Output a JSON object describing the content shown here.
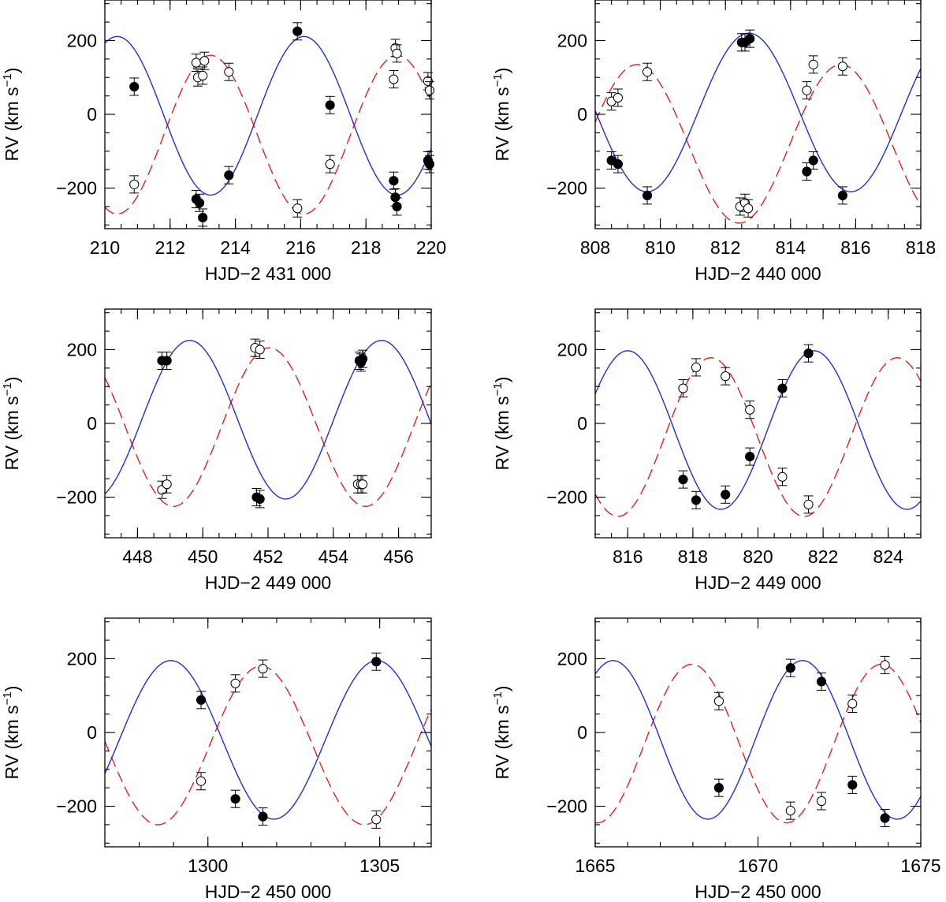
{
  "chart_data": [
    {
      "type": "scatter",
      "xlabel": "HJD−2 431 000",
      "ylabel": "RV  (km s",
      "ylabel_sup": "−1",
      "ylabel_close": ")",
      "xlim": [
        210,
        220
      ],
      "ylim": [
        -310,
        310
      ],
      "xticks": [
        210,
        212,
        214,
        216,
        218,
        220
      ],
      "yticks": [
        -200,
        0,
        200
      ],
      "curves": {
        "primary": {
          "style": "solid",
          "color": "#1f2fd0",
          "K": 215,
          "gamma": -4,
          "period": 5.72,
          "t_max": 216.1
        },
        "secondary": {
          "style": "dashed",
          "color": "#e0201c",
          "K": 215,
          "gamma": -55,
          "period": 5.72,
          "t_max": 213.24
        }
      },
      "series": [
        {
          "marker": "filled",
          "x": [
            210.9,
            212.8,
            212.9,
            213.0,
            213.8,
            215.9,
            216.9,
            218.85,
            218.9,
            218.95,
            219.9,
            219.95
          ],
          "y": [
            75,
            -230,
            -240,
            -280,
            -165,
            225,
            25,
            -180,
            -225,
            -250,
            -125,
            -135
          ]
        },
        {
          "marker": "open",
          "x": [
            210.9,
            212.8,
            212.85,
            213.0,
            213.05,
            213.8,
            215.9,
            216.9,
            218.85,
            218.9,
            218.95,
            219.9,
            219.95
          ],
          "y": [
            -190,
            140,
            100,
            105,
            145,
            115,
            -255,
            -135,
            95,
            180,
            165,
            90,
            65
          ]
        }
      ]
    },
    {
      "type": "scatter",
      "xlabel": "HJD−2 440 000",
      "ylabel": "RV  (km s",
      "ylabel_sup": "−1",
      "ylabel_close": ")",
      "xlim": [
        808,
        818
      ],
      "ylim": [
        -310,
        310
      ],
      "xticks": [
        808,
        810,
        812,
        814,
        816,
        818
      ],
      "yticks": [
        -200,
        0,
        200
      ],
      "curves": {
        "primary": {
          "style": "solid",
          "color": "#1f2fd0",
          "K": 215,
          "gamma": 5,
          "period": 6.26,
          "t_max": 812.72
        },
        "secondary": {
          "style": "dashed",
          "color": "#e0201c",
          "K": 215,
          "gamma": -80,
          "period": 6.26,
          "t_max": 815.55
        }
      },
      "series": [
        {
          "marker": "filled",
          "x": [
            808.5,
            808.7,
            809.6,
            812.5,
            812.6,
            812.75,
            814.5,
            814.7,
            815.6
          ],
          "y": [
            -125,
            -135,
            -220,
            195,
            195,
            205,
            -155,
            -125,
            -220
          ]
        },
        {
          "marker": "open",
          "x": [
            808.5,
            808.7,
            809.6,
            812.45,
            812.6,
            812.7,
            814.5,
            814.7,
            815.6
          ],
          "y": [
            35,
            45,
            115,
            -250,
            -240,
            -255,
            65,
            135,
            130
          ]
        }
      ]
    },
    {
      "type": "scatter",
      "xlabel": "HJD−2 449 000",
      "ylabel": "RV  (km s",
      "ylabel_sup": "−1",
      "ylabel_close": ")",
      "xlim": [
        447,
        457
      ],
      "ylim": [
        -310,
        310
      ],
      "xticks": [
        448,
        450,
        452,
        454,
        456
      ],
      "yticks": [
        -200,
        0,
        200
      ],
      "curves": {
        "primary": {
          "style": "solid",
          "color": "#1f2fd0",
          "K": 215,
          "gamma": 10,
          "period": 5.88,
          "t_max": 449.6
        },
        "secondary": {
          "style": "dashed",
          "color": "#e0201c",
          "K": 215,
          "gamma": -10,
          "period": 5.88,
          "t_max": 452.04
        }
      },
      "series": [
        {
          "marker": "filled",
          "x": [
            448.75,
            448.9,
            451.65,
            451.75,
            454.8,
            454.85,
            454.9
          ],
          "y": [
            170,
            170,
            -200,
            -205,
            170,
            165,
            175
          ]
        },
        {
          "marker": "open",
          "x": [
            448.75,
            448.9,
            451.6,
            451.75,
            454.75,
            454.85,
            454.9
          ],
          "y": [
            -180,
            -165,
            205,
            200,
            -165,
            -165,
            -165
          ]
        }
      ]
    },
    {
      "type": "scatter",
      "xlabel": "HJD−2 449 000",
      "ylabel": "RV  (km s",
      "ylabel_sup": "−1",
      "ylabel_close": ")",
      "xlim": [
        815,
        825
      ],
      "ylim": [
        -310,
        310
      ],
      "xticks": [
        816,
        818,
        820,
        822,
        824
      ],
      "yticks": [
        -200,
        0,
        200
      ],
      "curves": {
        "primary": {
          "style": "solid",
          "color": "#1f2fd0",
          "K": 215,
          "gamma": -18,
          "period": 5.72,
          "t_max": 821.72
        },
        "secondary": {
          "style": "dashed",
          "color": "#e0201c",
          "K": 215,
          "gamma": -37,
          "period": 5.72,
          "t_max": 818.56
        }
      },
      "series": [
        {
          "marker": "filled",
          "x": [
            817.7,
            818.1,
            819.0,
            819.75,
            820.75,
            821.55
          ],
          "y": [
            -152,
            -208,
            -193,
            -90,
            95,
            190
          ]
        },
        {
          "marker": "open",
          "x": [
            817.7,
            818.1,
            819.0,
            819.75,
            820.75,
            821.55
          ],
          "y": [
            95,
            152,
            128,
            37,
            -145,
            -220
          ]
        }
      ]
    },
    {
      "type": "scatter",
      "xlabel": "HJD−2 450 000",
      "ylabel": "RV  (km s",
      "ylabel_sup": "−1",
      "ylabel_close": ")",
      "xlim": [
        1297,
        1306.5
      ],
      "ylim": [
        -310,
        310
      ],
      "xticks": [
        1300,
        1305
      ],
      "minor_xticks": [
        1298,
        1299,
        1300,
        1301,
        1302,
        1303,
        1304,
        1305,
        1306
      ],
      "yticks": [
        -200,
        0,
        200
      ],
      "curves": {
        "primary": {
          "style": "solid",
          "color": "#1f2fd0",
          "K": 215,
          "gamma": -20,
          "period": 6.0,
          "t_max": 1298.92
        },
        "secondary": {
          "style": "dashed",
          "color": "#e0201c",
          "K": 215,
          "gamma": -35,
          "period": 6.0,
          "t_max": 1301.55
        }
      },
      "series": [
        {
          "marker": "filled",
          "x": [
            1299.8,
            1300.8,
            1301.6,
            1304.9
          ],
          "y": [
            88,
            -180,
            -228,
            192
          ]
        },
        {
          "marker": "open",
          "x": [
            1299.8,
            1300.8,
            1301.6,
            1304.9
          ],
          "y": [
            -132,
            133,
            173,
            -236
          ]
        }
      ]
    },
    {
      "type": "scatter",
      "xlabel": "HJD−2 450 000",
      "ylabel": "RV  (km s",
      "ylabel_sup": "−1",
      "ylabel_close": ")",
      "xlim": [
        1665,
        1675
      ],
      "ylim": [
        -310,
        310
      ],
      "xticks": [
        1665,
        1670,
        1675
      ],
      "minor_xticks": [
        1665,
        1666,
        1667,
        1668,
        1669,
        1670,
        1671,
        1672,
        1673,
        1674,
        1675
      ],
      "yticks": [
        -200,
        0,
        200
      ],
      "curves": {
        "primary": {
          "style": "solid",
          "color": "#1f2fd0",
          "K": 215,
          "gamma": -20,
          "period": 5.82,
          "t_max": 1671.37
        },
        "secondary": {
          "style": "dashed",
          "color": "#e0201c",
          "K": 215,
          "gamma": -30,
          "period": 5.82,
          "t_max": 1667.97
        }
      },
      "series": [
        {
          "marker": "filled",
          "x": [
            1668.8,
            1671.0,
            1671.95,
            1672.9,
            1673.9
          ],
          "y": [
            -150,
            175,
            138,
            -142,
            -232
          ]
        },
        {
          "marker": "open",
          "x": [
            1668.8,
            1671.0,
            1671.95,
            1672.9,
            1673.9
          ],
          "y": [
            85,
            -212,
            -186,
            78,
            183
          ]
        }
      ]
    }
  ]
}
